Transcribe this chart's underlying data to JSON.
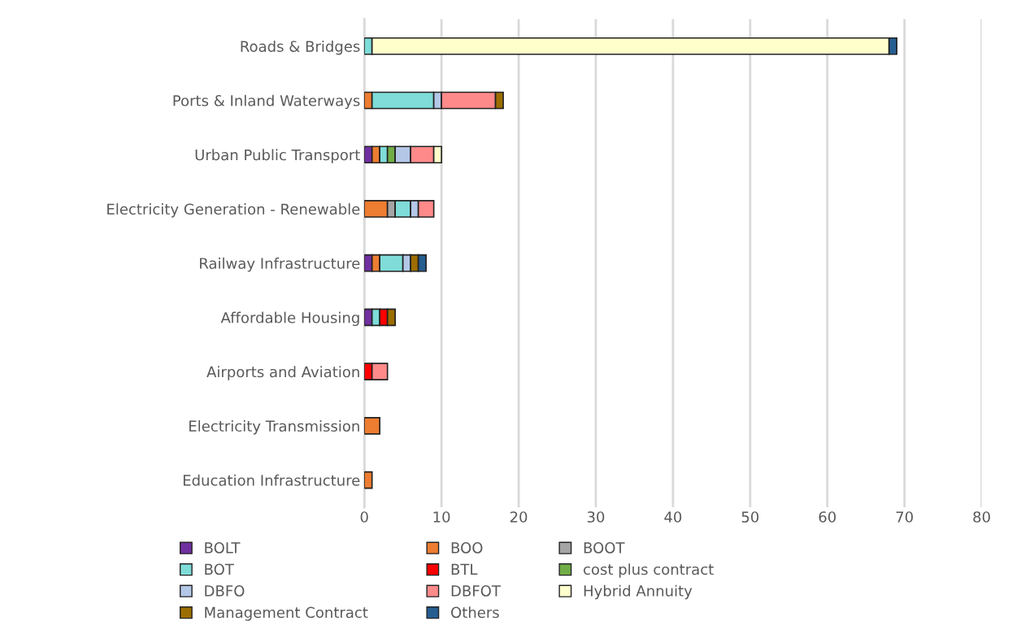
{
  "chart_data": {
    "type": "bar",
    "orientation": "horizontal",
    "stacked": true,
    "categories": [
      "Roads & Bridges",
      "Ports & Inland Waterways",
      "Urban Public Transport",
      "Electricity Generation - Renewable",
      "Railway Infrastructure",
      "Affordable Housing",
      "Airports and Aviation",
      "Electricity Transmission",
      "Education Infrastructure"
    ],
    "series": [
      {
        "name": "BOLT",
        "color": "#7030a0",
        "values": [
          0,
          0,
          1,
          0,
          1,
          1,
          0,
          0,
          0
        ]
      },
      {
        "name": "BOO",
        "color": "#ed7d31",
        "values": [
          0,
          1,
          1,
          3,
          1,
          0,
          0,
          2,
          1
        ]
      },
      {
        "name": "BOOT",
        "color": "#a5a5a5",
        "values": [
          0,
          0,
          0,
          1,
          0,
          0,
          0,
          0,
          0
        ]
      },
      {
        "name": "BOT",
        "color": "#7fdcd8",
        "values": [
          1,
          8,
          1,
          2,
          3,
          1,
          0,
          0,
          0
        ]
      },
      {
        "name": "BTL",
        "color": "#ff0000",
        "values": [
          0,
          0,
          0,
          0,
          0,
          1,
          1,
          0,
          0
        ]
      },
      {
        "name": "cost plus contract",
        "color": "#70ad47",
        "values": [
          0,
          0,
          1,
          0,
          0,
          0,
          0,
          0,
          0
        ]
      },
      {
        "name": "DBFO",
        "color": "#b4c7e7",
        "values": [
          0,
          1,
          2,
          1,
          1,
          0,
          0,
          0,
          0
        ]
      },
      {
        "name": "DBFOT",
        "color": "#ff8a8a",
        "values": [
          0,
          7,
          3,
          2,
          0,
          0,
          2,
          0,
          0
        ]
      },
      {
        "name": "Hybrid Annuity",
        "color": "#ffffcc",
        "values": [
          67,
          0,
          1,
          0,
          0,
          0,
          0,
          0,
          0
        ]
      },
      {
        "name": "Management Contract",
        "color": "#9c6d00",
        "values": [
          0,
          1,
          0,
          0,
          1,
          1,
          0,
          0,
          0
        ]
      },
      {
        "name": "Others",
        "color": "#255e91",
        "values": [
          1,
          0,
          0,
          0,
          1,
          0,
          0,
          0,
          0
        ]
      }
    ],
    "xlim": [
      0,
      80
    ],
    "xticks": [
      0,
      10,
      20,
      30,
      40,
      50,
      60,
      70,
      80
    ],
    "grid": "x",
    "legend": "bottom"
  }
}
